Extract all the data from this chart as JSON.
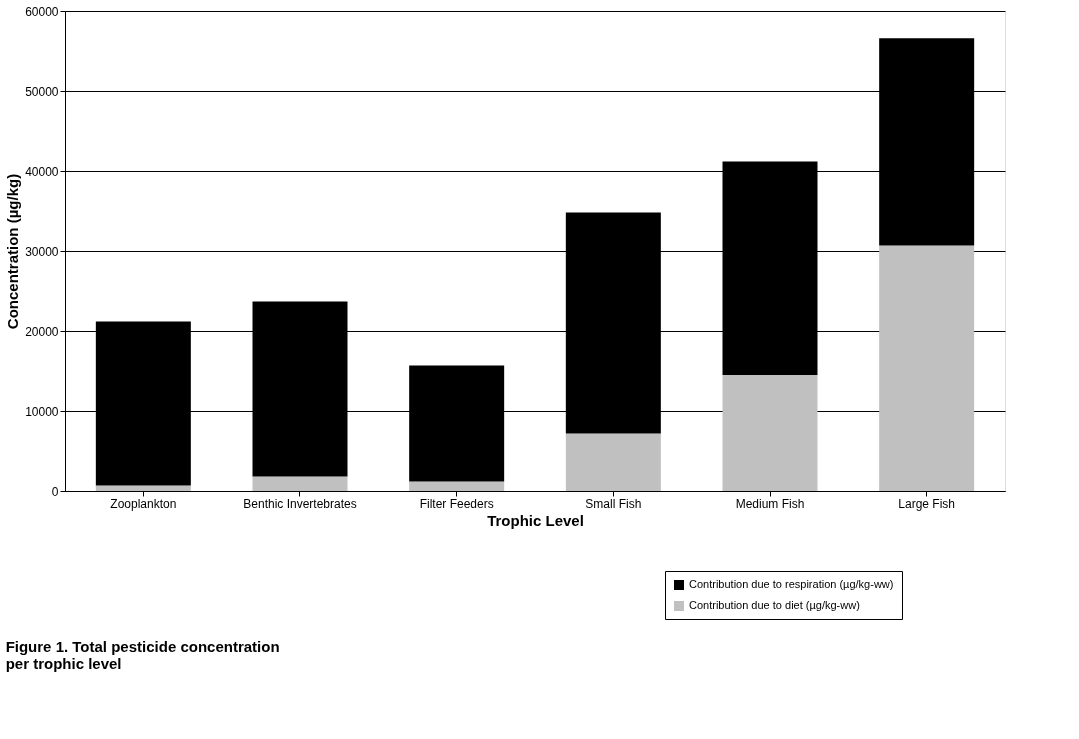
{
  "chart_data": {
    "type": "bar",
    "stacked": true,
    "title": "Figure 1. Total pesticide concentration per trophic level",
    "xlabel": "Trophic Level",
    "ylabel": "Concentration (µg/kg)",
    "categories": [
      "Zooplankton",
      "Benthic Invertebrates",
      "Filter Feeders",
      "Small Fish",
      "Medium Fish",
      "Large Fish"
    ],
    "series": [
      {
        "name": "Contribution due to diet (µg/kg-ww)",
        "color": "#c0c0c0",
        "values": [
          700,
          1800,
          1200,
          7200,
          14500,
          30700
        ]
      },
      {
        "name": "Contribution due to respiration (µg/kg-ww)",
        "color": "#000000",
        "values": [
          20500,
          21900,
          14500,
          27600,
          26700,
          25900
        ]
      }
    ],
    "ylim": [
      0,
      60000
    ],
    "yticks": [
      0,
      10000,
      20000,
      30000,
      40000,
      50000,
      60000
    ],
    "grid": "y",
    "legend": "bottom right"
  }
}
